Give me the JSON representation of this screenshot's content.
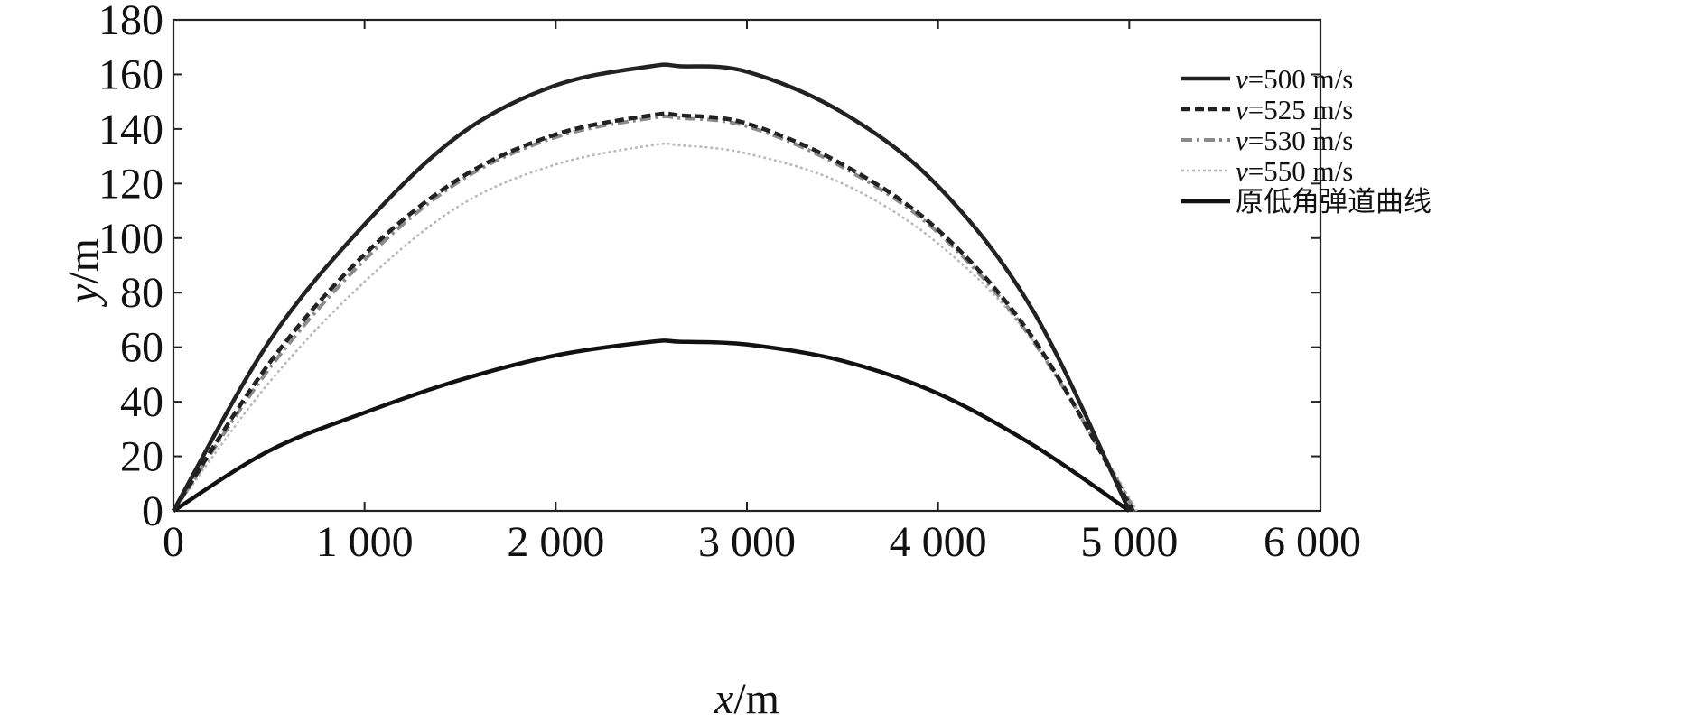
{
  "chart_data": {
    "type": "line",
    "title": "",
    "xlabel_var": "x",
    "xlabel_unit": "/m",
    "ylabel_var": "y",
    "ylabel_unit": "/m",
    "xlim": [
      0,
      6000
    ],
    "ylim": [
      0,
      180
    ],
    "x_ticks": [
      0,
      1000,
      2000,
      3000,
      4000,
      5000,
      6000
    ],
    "x_tick_labels": [
      "0",
      "1 000",
      "2 000",
      "3 000",
      "4 000",
      "5 000",
      "6 000"
    ],
    "y_ticks": [
      0,
      20,
      40,
      60,
      80,
      100,
      120,
      140,
      160,
      180
    ],
    "y_tick_labels": [
      "0",
      "20",
      "40",
      "60",
      "80",
      "100",
      "120",
      "140",
      "160",
      "180"
    ],
    "grid": false,
    "legend_position": "top-right",
    "series": [
      {
        "name": "v=500 m/s",
        "color": "#222222",
        "style": "solid",
        "x": [
          0,
          500,
          1000,
          1500,
          2000,
          2500,
          2650,
          3000,
          3500,
          4000,
          4500,
          5000
        ],
        "y": [
          0,
          62,
          105,
          138,
          156,
          163,
          163,
          161,
          146,
          119,
          73,
          0
        ]
      },
      {
        "name": "v=525 m/s",
        "color": "#222222",
        "style": "dashed",
        "x": [
          0,
          500,
          1000,
          1500,
          2000,
          2500,
          2650,
          3000,
          3500,
          4000,
          4500,
          5020
        ],
        "y": [
          0,
          54,
          94,
          122,
          138,
          145,
          145,
          142,
          127,
          103,
          63,
          0
        ]
      },
      {
        "name": "v=530 m/s",
        "color": "#8a8a8a",
        "style": "dash-dot",
        "x": [
          0,
          500,
          1000,
          1500,
          2000,
          2500,
          2650,
          3000,
          3500,
          4000,
          4500,
          5030
        ],
        "y": [
          0,
          52,
          92,
          121,
          137,
          144,
          144,
          141,
          126,
          102,
          62,
          0
        ]
      },
      {
        "name": "v=550 m/s",
        "color": "#b8b8b8",
        "style": "dotted",
        "x": [
          0,
          500,
          1000,
          1500,
          2000,
          2500,
          2650,
          3000,
          3500,
          4000,
          4500,
          5040
        ],
        "y": [
          0,
          47,
          84,
          112,
          127,
          134,
          134,
          131,
          120,
          98,
          62,
          0
        ]
      },
      {
        "name": "原低角弹道曲线",
        "color": "#111111",
        "style": "solid",
        "x": [
          0,
          500,
          1000,
          1500,
          2000,
          2500,
          2650,
          3000,
          3500,
          4000,
          4500,
          5000
        ],
        "y": [
          0,
          22,
          36,
          48,
          57,
          62,
          62,
          61,
          55,
          43,
          24,
          0
        ]
      }
    ]
  }
}
